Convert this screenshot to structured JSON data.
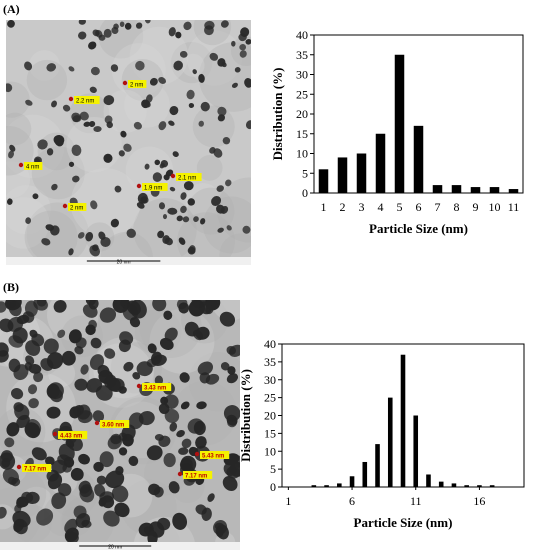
{
  "panels": [
    {
      "label": "(A)",
      "micrograph": {
        "background": "#c9c9c9",
        "particle_color": "#2a2a2a",
        "measure_labels": [
          "2.2 nm",
          "2 nm",
          "4 nm",
          "1.9 nm",
          "2.1 nm",
          "2 nm"
        ],
        "scale_bar_text": "20 nm"
      }
    },
    {
      "label": "(B)",
      "micrograph": {
        "background": "#b8b8b8",
        "particle_color": "#262626",
        "measure_labels": [
          "3.43 nm",
          "3.60 nm",
          "4.43 nm",
          "5.43 nm",
          "7.17 nm",
          "7.17 nm"
        ],
        "scale_bar_text": "20 nm"
      }
    }
  ],
  "chart_data": [
    {
      "type": "bar",
      "categories": [
        "1",
        "2",
        "3",
        "4",
        "5",
        "6",
        "7",
        "8",
        "9",
        "10",
        "11"
      ],
      "values": [
        6,
        9,
        10,
        15,
        35,
        17,
        2,
        2,
        1.5,
        1.5,
        1
      ],
      "xlabel": "Particle Size (nm)",
      "ylabel": "Distribution (%)",
      "ylim": [
        0,
        40
      ],
      "yticks": [
        "0",
        "5",
        "10",
        "15",
        "20",
        "25",
        "30",
        "35",
        "40"
      ],
      "grid": false,
      "bar_color": "#000000"
    },
    {
      "type": "bar",
      "x": [
        1,
        2,
        3,
        4,
        5,
        6,
        7,
        8,
        9,
        10,
        11,
        12,
        13,
        14,
        15,
        16,
        17,
        18,
        19
      ],
      "values": [
        0,
        0,
        0.5,
        0.5,
        1,
        3,
        7,
        12,
        25,
        37,
        20,
        3.5,
        1.5,
        1,
        0.5,
        0.5,
        0.5,
        0,
        0
      ],
      "xticks": [
        "1",
        "6",
        "11",
        "16"
      ],
      "xlabel": "Particle Size (nm)",
      "ylabel": "Distribution (%)",
      "ylim": [
        0,
        40
      ],
      "yticks": [
        "0",
        "5",
        "10",
        "15",
        "20",
        "25",
        "30",
        "35",
        "40"
      ],
      "grid": false,
      "bar_color": "#000000"
    }
  ]
}
